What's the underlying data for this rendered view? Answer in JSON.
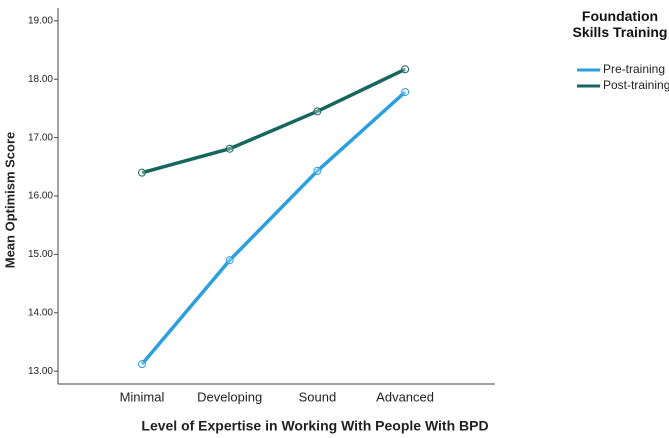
{
  "chart_data": {
    "type": "line",
    "x_label": "Level of Expertise in Working With People With BPD",
    "y_label": "Mean Optimism Score",
    "legend_title": "Foundation Skills Training",
    "legend": "right",
    "categories": [
      "Minimal",
      "Developing",
      "Sound",
      "Advanced"
    ],
    "series": [
      {
        "name": "Pre-training",
        "color": "#2b9fe0",
        "values": [
          13.12,
          14.9,
          16.43,
          17.78
        ]
      },
      {
        "name": "Post-training",
        "color": "#17665e",
        "values": [
          16.4,
          16.81,
          17.45,
          18.17
        ]
      }
    ],
    "ylim": [
      12.78,
      19.22
    ],
    "yticks": [
      {
        "value": 13,
        "label": "13.00"
      },
      {
        "value": 14,
        "label": "14.00"
      },
      {
        "value": 15,
        "label": "15.00"
      },
      {
        "value": 16,
        "label": "16.00"
      },
      {
        "value": 17,
        "label": "17.00"
      },
      {
        "value": 18,
        "label": "18.00"
      },
      {
        "value": 19,
        "label": "19.00"
      }
    ]
  }
}
